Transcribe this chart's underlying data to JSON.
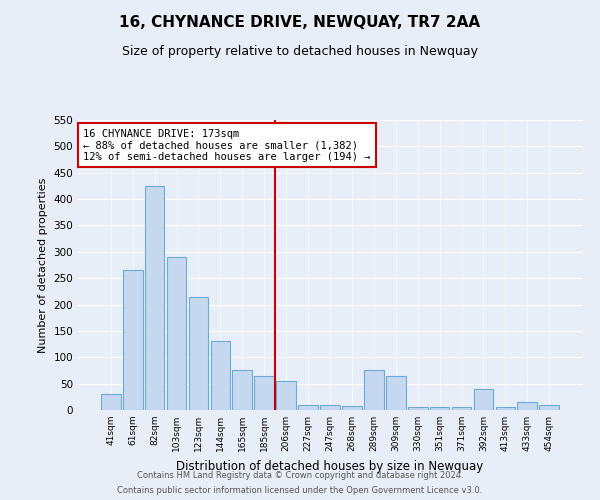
{
  "title": "16, CHYNANCE DRIVE, NEWQUAY, TR7 2AA",
  "subtitle": "Size of property relative to detached houses in Newquay",
  "xlabel": "Distribution of detached houses by size in Newquay",
  "ylabel": "Number of detached properties",
  "bar_labels": [
    "41sqm",
    "61sqm",
    "82sqm",
    "103sqm",
    "123sqm",
    "144sqm",
    "165sqm",
    "185sqm",
    "206sqm",
    "227sqm",
    "247sqm",
    "268sqm",
    "289sqm",
    "309sqm",
    "330sqm",
    "351sqm",
    "371sqm",
    "392sqm",
    "413sqm",
    "433sqm",
    "454sqm"
  ],
  "bar_values": [
    30,
    265,
    425,
    290,
    215,
    130,
    75,
    65,
    55,
    10,
    10,
    8,
    75,
    65,
    5,
    5,
    5,
    40,
    5,
    15,
    10
  ],
  "bar_color": "#c5d8f0",
  "bar_edge_color": "#6aaad4",
  "vline_index": 7.5,
  "annotation_line1": "16 CHYNANCE DRIVE: 173sqm",
  "annotation_line2": "← 88% of detached houses are smaller (1,382)",
  "annotation_line3": "12% of semi-detached houses are larger (194) →",
  "annotation_box_color": "#ffffff",
  "annotation_box_edge": "#cc0000",
  "vline_color": "#cc0000",
  "ylim": [
    0,
    550
  ],
  "yticks": [
    0,
    50,
    100,
    150,
    200,
    250,
    300,
    350,
    400,
    450,
    500,
    550
  ],
  "footnote1": "Contains HM Land Registry data © Crown copyright and database right 2024.",
  "footnote2": "Contains public sector information licensed under the Open Government Licence v3.0.",
  "bg_color": "#e8eef8",
  "plot_bg_color": "#e8eef8",
  "grid_color": "#ffffff",
  "title_fontsize": 11,
  "subtitle_fontsize": 9
}
